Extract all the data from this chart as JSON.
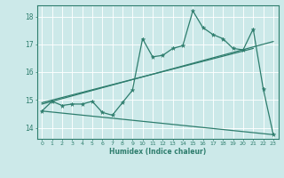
{
  "xlabel": "Humidex (Indice chaleur)",
  "bg_color": "#cce9e9",
  "line_color": "#2e7d6d",
  "xlim": [
    -0.5,
    23.5
  ],
  "ylim": [
    13.6,
    18.4
  ],
  "yticks": [
    14,
    15,
    16,
    17,
    18
  ],
  "xticks": [
    0,
    1,
    2,
    3,
    4,
    5,
    6,
    7,
    8,
    9,
    10,
    11,
    12,
    13,
    14,
    15,
    16,
    17,
    18,
    19,
    20,
    21,
    22,
    23
  ],
  "main_x": [
    0,
    1,
    2,
    3,
    4,
    5,
    6,
    7,
    8,
    9,
    10,
    11,
    12,
    13,
    14,
    15,
    16,
    17,
    18,
    19,
    20,
    21,
    22,
    23
  ],
  "main_y": [
    14.6,
    14.95,
    14.8,
    14.85,
    14.85,
    14.95,
    14.55,
    14.45,
    14.9,
    15.35,
    17.2,
    16.55,
    16.6,
    16.85,
    16.95,
    18.2,
    17.6,
    17.35,
    17.2,
    16.85,
    16.8,
    17.55,
    15.4,
    13.75
  ],
  "upper_line_x": [
    0,
    21
  ],
  "upper_line_y": [
    14.9,
    16.85
  ],
  "lower_line_x": [
    0,
    23
  ],
  "lower_line_y": [
    14.6,
    13.75
  ],
  "mid_line_x": [
    0,
    23
  ],
  "mid_line_y": [
    14.85,
    17.1
  ]
}
